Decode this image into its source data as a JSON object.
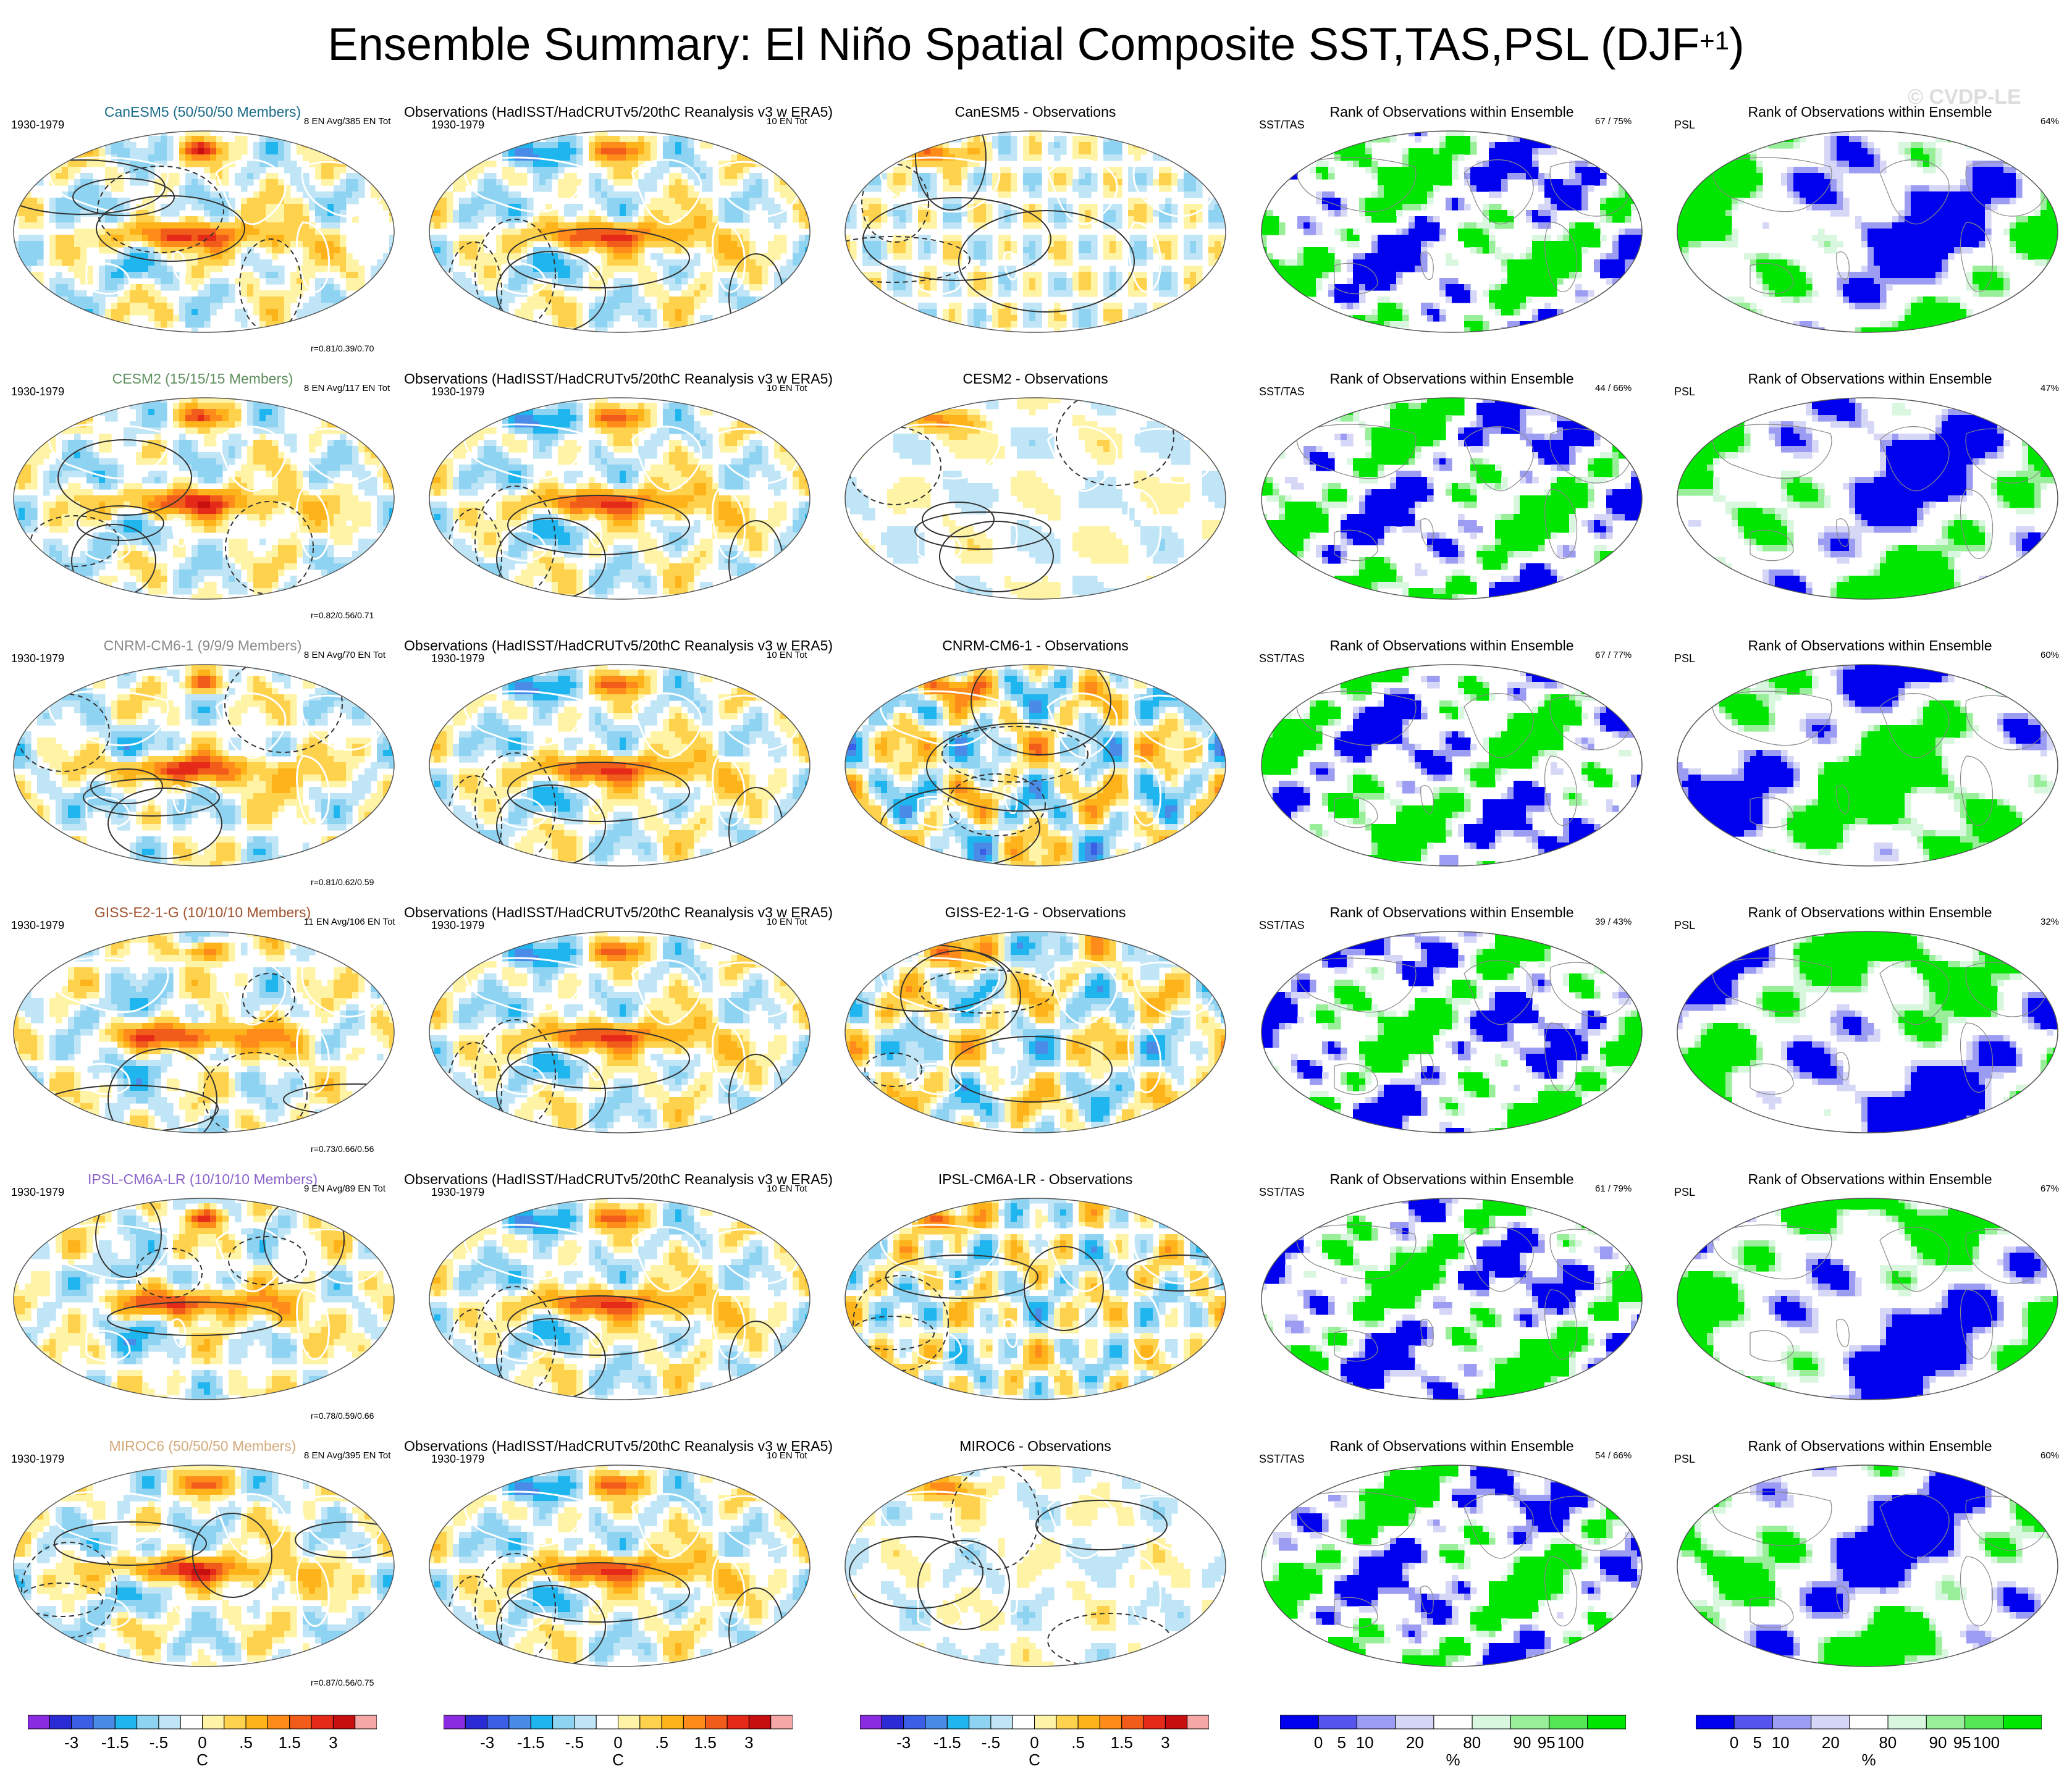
{
  "title": {
    "main": "Ensemble Summary: El Niño Spatial Composite SST,TAS,PSL (DJF",
    "sup": "+1",
    "close": ")"
  },
  "watermark": "© CVDP-LE",
  "colors": {
    "diverging": [
      "#8a2be2",
      "#2b2bd6",
      "#3b5ee6",
      "#4a8be8",
      "#1fb5ef",
      "#8fd3f2",
      "#bfe5f6",
      "#ffffff",
      "#fff3a6",
      "#ffd24d",
      "#ffb31a",
      "#ff8c1a",
      "#f25c1a",
      "#e62a1a",
      "#c80f0f",
      "#f5a6a6"
    ],
    "rank": [
      "#0000ee",
      "#5555ee",
      "#9c9cf2",
      "#d6d6f7",
      "#ffffff",
      "#d9f7df",
      "#99ee99",
      "#55e655",
      "#00e600"
    ],
    "land_outline": "#dddddd",
    "contour": "#333333"
  },
  "column_headers": {
    "obs_title": "Observations (HadISST/HadCRUTv5/20thC Reanalysis v3 w ERA5)",
    "rank_title": "Rank of Observations within Ensemble",
    "period": "1930-1979",
    "obs_count": "10 EN Tot",
    "sst_label": "SST/TAS",
    "psl_label": "PSL",
    "diff_suffix": " - Observations"
  },
  "chart_data": {
    "type": "heatmap",
    "rows": [
      {
        "model": "CanESM5",
        "label": "CanESM5 (50/50/50 Members)",
        "label_color": "#1a6b8a",
        "count": "8 EN Avg/385 EN Tot",
        "corr": "r=0.81/0.39/0.70",
        "sst_rank": "67 /  75%",
        "psl_rank": "64%",
        "seed": 11
      },
      {
        "model": "CESM2",
        "label": "CESM2 (15/15/15 Members)",
        "label_color": "#5f8f5f",
        "count": "8 EN Avg/117 EN Tot",
        "corr": "r=0.82/0.56/0.71",
        "sst_rank": "44 /  66%",
        "psl_rank": "47%",
        "seed": 23
      },
      {
        "model": "CNRM-CM6-1",
        "label": "CNRM-CM6-1 (9/9/9 Members)",
        "label_color": "#8a8a8a",
        "count": "8 EN Avg/70 EN Tot",
        "corr": "r=0.81/0.62/0.59",
        "sst_rank": "67 /  77%",
        "psl_rank": "60%",
        "seed": 37
      },
      {
        "model": "GISS-E2-1-G",
        "label": "GISS-E2-1-G (10/10/10 Members)",
        "label_color": "#a0522d",
        "count": "11 EN Avg/106 EN Tot",
        "corr": "r=0.73/0.66/0.56",
        "sst_rank": "39 /  43%",
        "psl_rank": "32%",
        "seed": 41
      },
      {
        "model": "IPSL-CM6A-LR",
        "label": "IPSL-CM6A-LR (10/10/10 Members)",
        "label_color": "#8a63c9",
        "count": "9 EN Avg/89 EN Tot",
        "corr": "r=0.78/0.59/0.66",
        "sst_rank": "61 /  79%",
        "psl_rank": "67%",
        "seed": 53
      },
      {
        "model": "MIROC6",
        "label": "MIROC6 (50/50/50 Members)",
        "label_color": "#d4a97a",
        "count": "8 EN Avg/395 EN Tot",
        "corr": "r=0.87/0.56/0.75",
        "sst_rank": "54 /  66%",
        "psl_rank": "60%",
        "seed": 67
      }
    ],
    "colorbar_temperature": {
      "ticks": [
        "-3",
        "-1.5",
        "-.5",
        "0",
        ".5",
        "1.5",
        "3"
      ],
      "unit": "C"
    },
    "colorbar_rank": {
      "ticks": [
        "0",
        "5",
        "10",
        "20",
        "80",
        "90",
        "95",
        "100"
      ],
      "unit": "%"
    }
  }
}
